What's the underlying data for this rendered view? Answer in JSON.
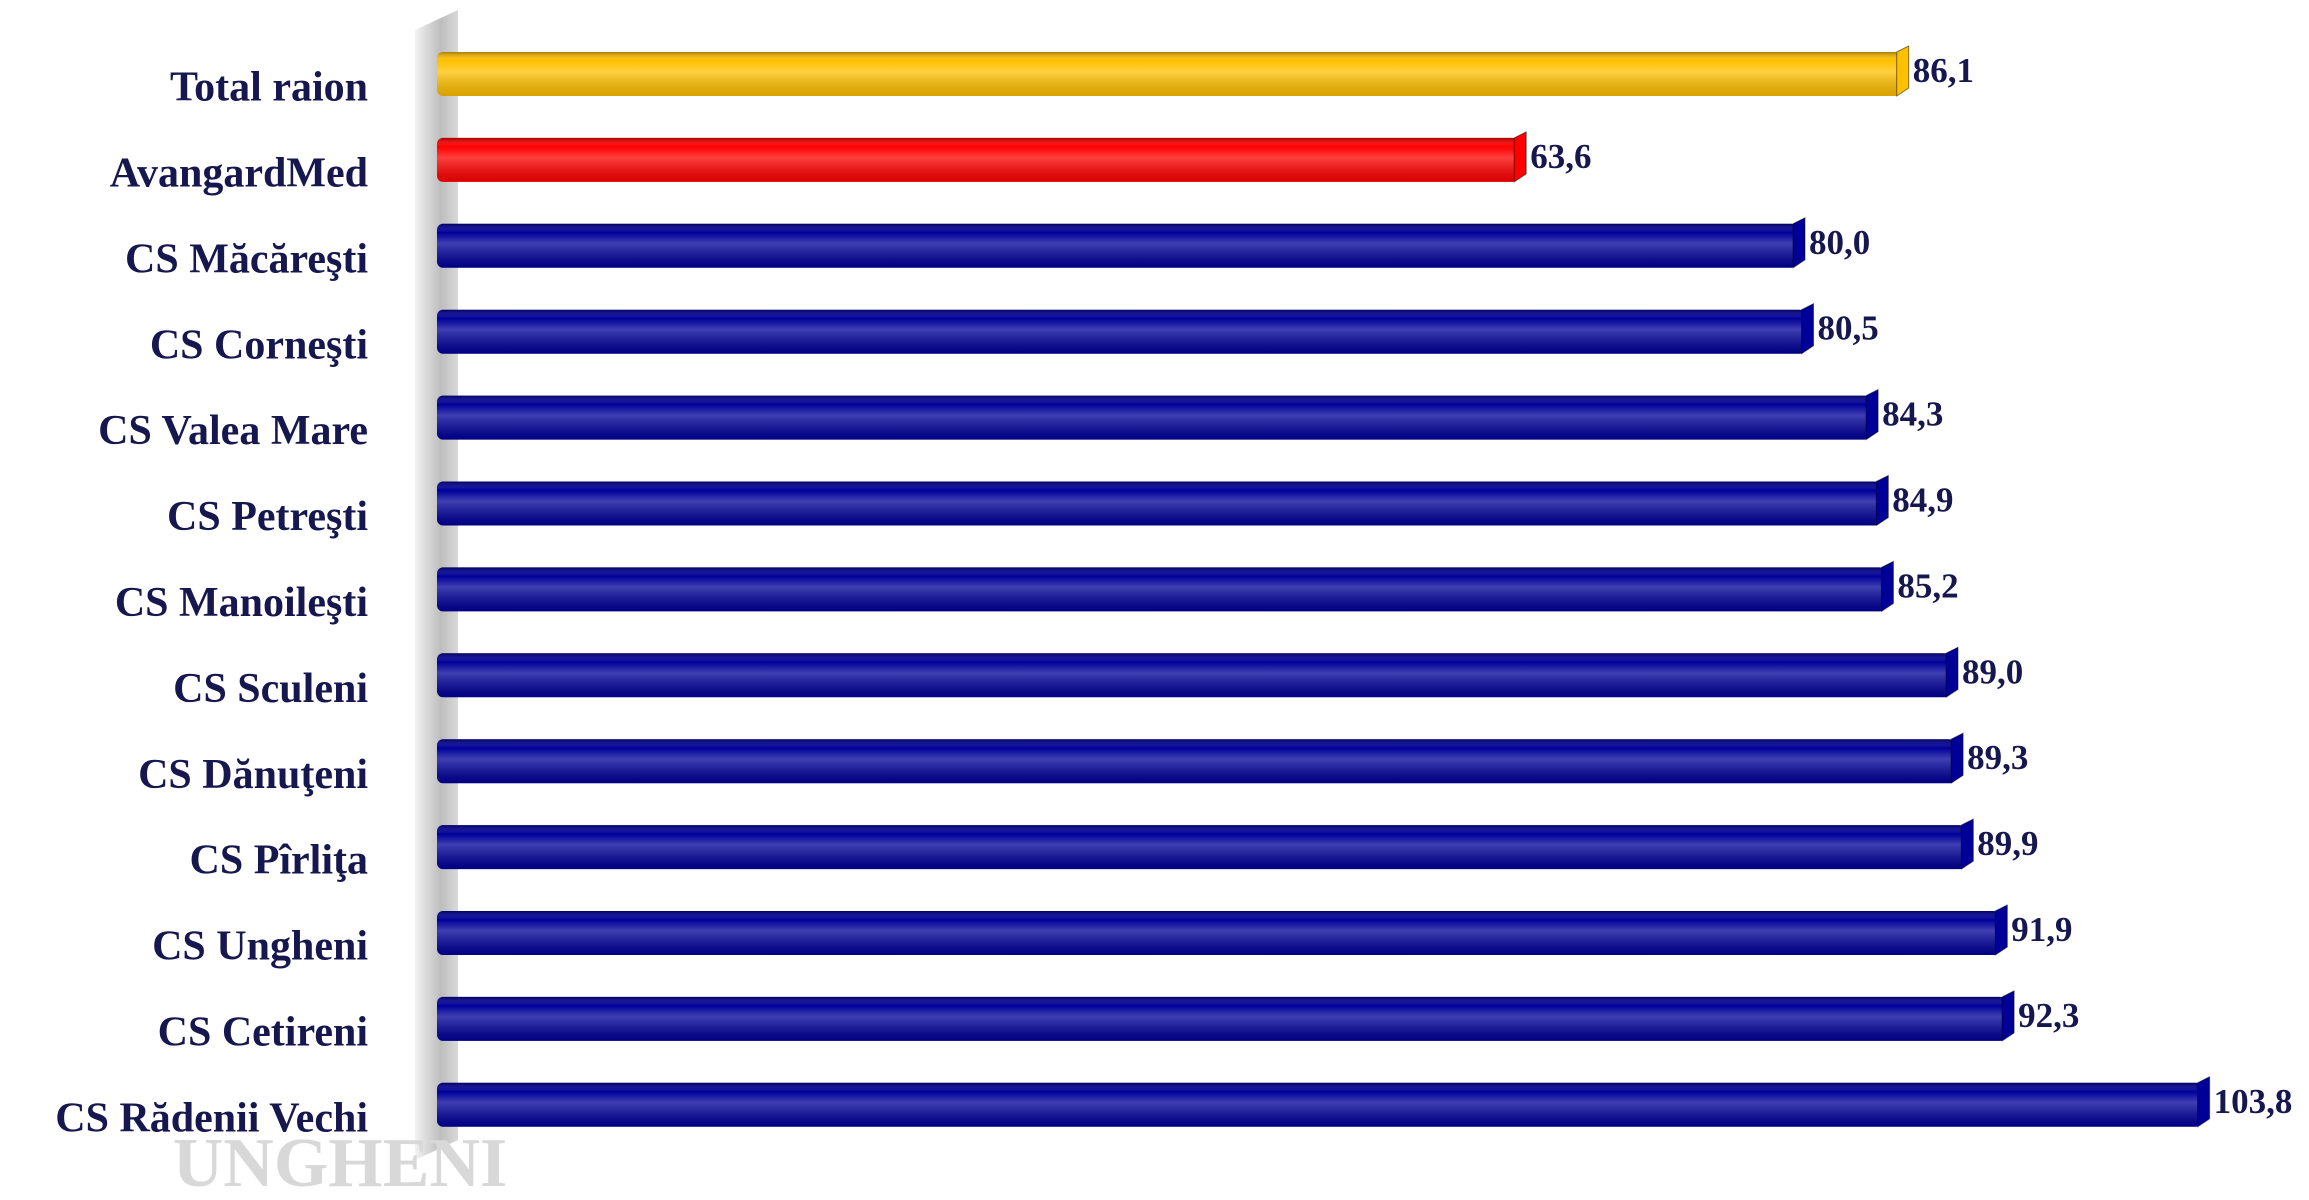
{
  "chart_data": {
    "type": "hbar",
    "categories": [
      "Total raion",
      "AvangardMed",
      "CS Măcăreşti",
      "CS Corneşti",
      "CS Valea Mare",
      "CS Petreşti",
      "CS Manoileşti",
      "CS Sculeni",
      "CS Dănuţeni",
      "CS Pîrliţa",
      "CS Ungheni",
      "CS Cetireni",
      "CS Rădenii Vechi"
    ],
    "values": [
      86.1,
      63.6,
      80.0,
      80.5,
      84.3,
      84.9,
      85.2,
      89.0,
      89.3,
      89.9,
      91.9,
      92.3,
      103.8
    ],
    "value_labels": [
      "86,1",
      "63,6",
      "80,0",
      "80,5",
      "84,3",
      "84,9",
      "85,2",
      "89,0",
      "89,3",
      "89,9",
      "91,9",
      "92,3",
      "103,8"
    ],
    "colors": [
      "#ffc000",
      "#ff0000",
      "#000099",
      "#000099",
      "#000099",
      "#000099",
      "#000099",
      "#000099",
      "#000099",
      "#000099",
      "#000099",
      "#000099",
      "#000099"
    ],
    "xlim": [
      0,
      110
    ],
    "watermark": "UNGHENI"
  }
}
